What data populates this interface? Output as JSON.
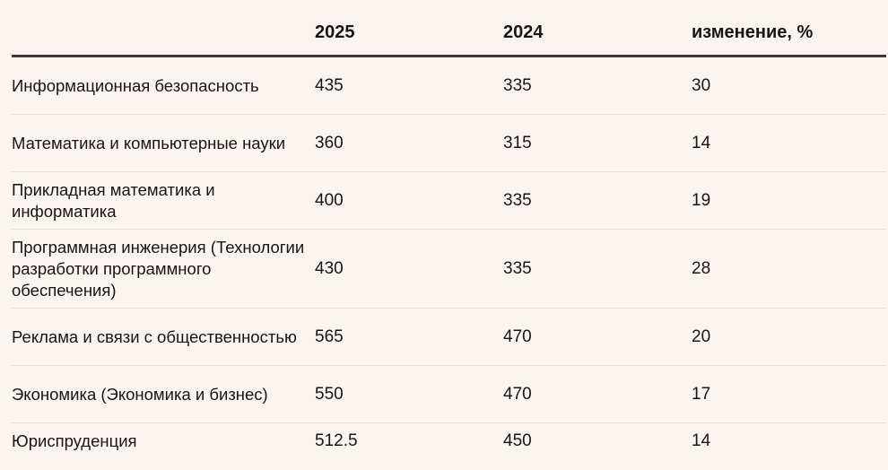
{
  "table": {
    "headers": [
      "",
      "2025",
      "2024",
      "изменение, %"
    ],
    "rows": [
      {
        "name": "Информационная безопасность",
        "y2025": "435",
        "y2024": "335",
        "change": "30"
      },
      {
        "name": "Математика и компьютерные науки",
        "y2025": "360",
        "y2024": "315",
        "change": "14"
      },
      {
        "name": "Прикладная математика и информатика",
        "y2025": "400",
        "y2024": "335",
        "change": "19"
      },
      {
        "name": "Программная инженерия (Технологии разработки программного обеспечения)",
        "y2025": "430",
        "y2024": "335",
        "change": "28"
      },
      {
        "name": "Реклама и связи с общественностью",
        "y2025": "565",
        "y2024": "470",
        "change": "20"
      },
      {
        "name": "Экономика (Экономика и бизнес)",
        "y2025": "550",
        "y2024": "470",
        "change": "17"
      },
      {
        "name": "Юриспруденция",
        "y2025": "512.5",
        "y2024": "450",
        "change": "14"
      }
    ]
  }
}
